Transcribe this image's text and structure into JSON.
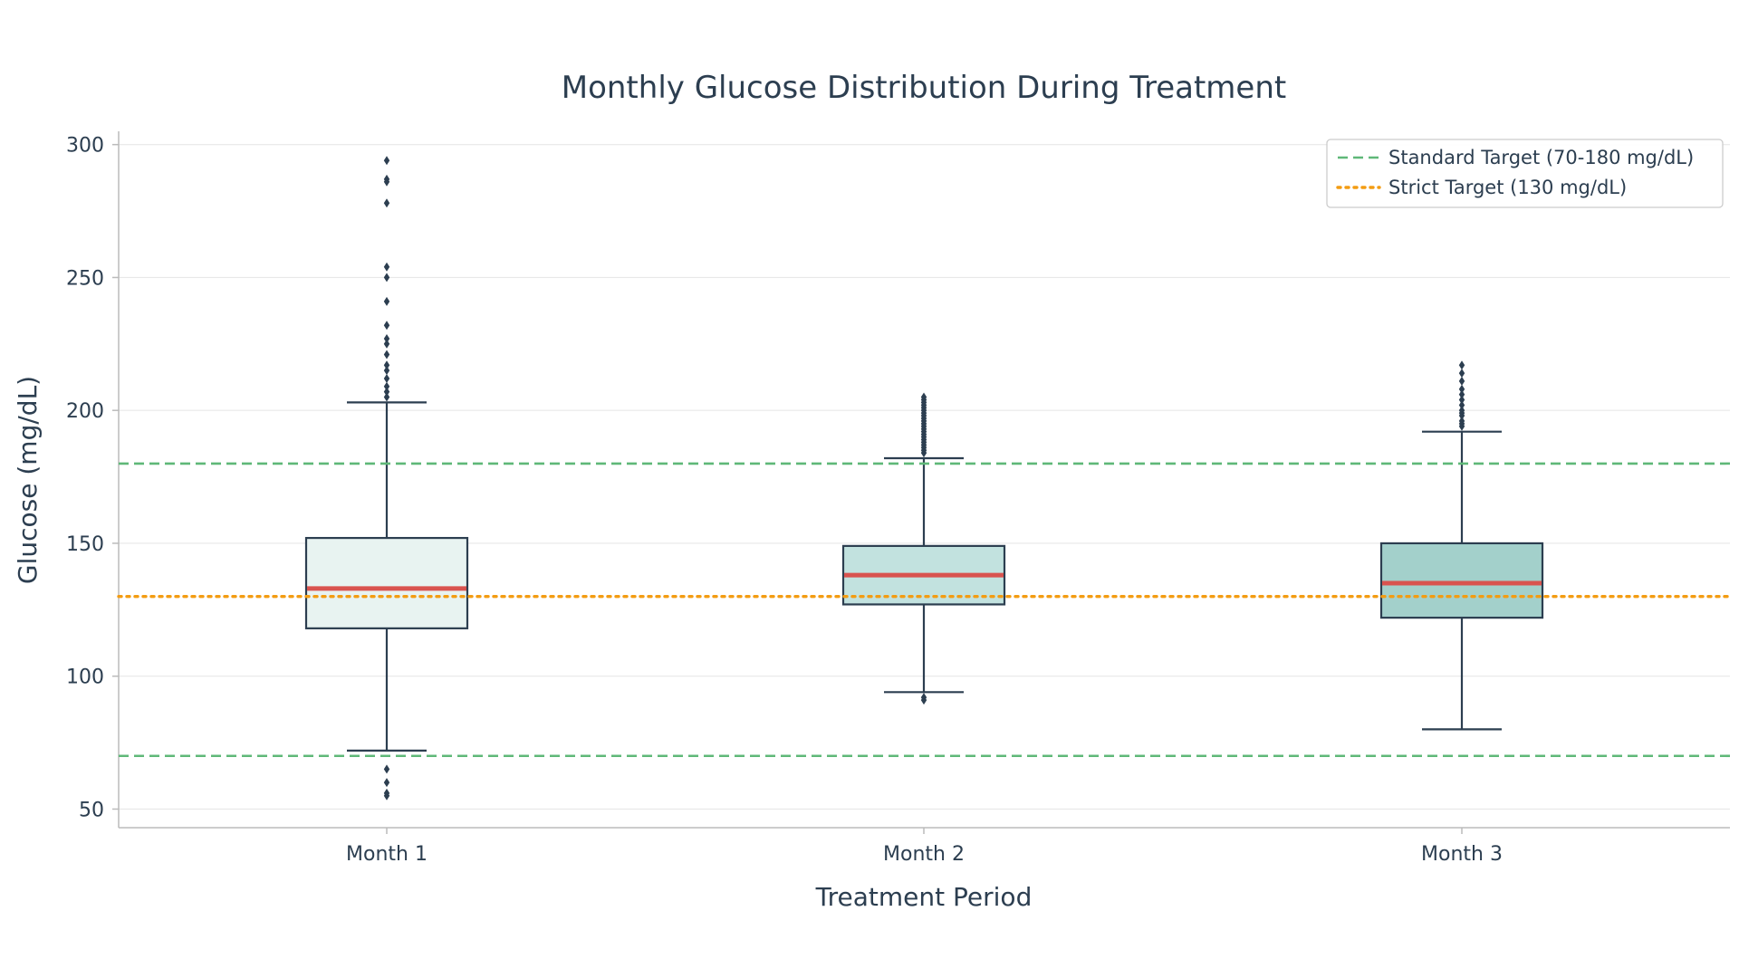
{
  "chart_data": {
    "type": "box",
    "title": "Monthly Glucose Distribution During Treatment",
    "xlabel": "Treatment Period",
    "ylabel": "Glucose (mg/dL)",
    "ylim": [
      43,
      305
    ],
    "yticks": [
      50,
      100,
      150,
      200,
      250,
      300
    ],
    "grid": "horizontal",
    "legend_position": "top-right",
    "categories": [
      "Month 1",
      "Month 2",
      "Month 3"
    ],
    "boxes": [
      {
        "category": "Month 1",
        "whisker_low": 72,
        "q1": 118,
        "median": 133,
        "q3": 152,
        "whisker_high": 203,
        "outliers": [
          294,
          287,
          286,
          278,
          254,
          250,
          241,
          232,
          227,
          225,
          221,
          217,
          215,
          212,
          209,
          207,
          205,
          65,
          60,
          56,
          55
        ],
        "fill": "#e8f3f1"
      },
      {
        "category": "Month 2",
        "whisker_low": 94,
        "q1": 127,
        "median": 138,
        "q3": 149,
        "whisker_high": 182,
        "outliers": [
          205,
          204,
          203,
          202,
          201,
          200,
          199,
          198,
          197,
          196,
          195,
          194,
          193,
          192,
          191,
          190,
          189,
          188,
          187,
          186,
          185,
          184,
          92,
          91
        ],
        "fill": "#c2e2df"
      },
      {
        "category": "Month 3",
        "whisker_low": 80,
        "q1": 122,
        "median": 135,
        "q3": 150,
        "whisker_high": 192,
        "outliers": [
          217,
          214,
          211,
          208,
          206,
          204,
          202,
          200,
          199,
          198,
          196,
          195,
          194
        ],
        "fill": "#a3d0cb"
      }
    ],
    "reference_lines": [
      {
        "name": "Standard Target (70-180 mg/dL)",
        "values": [
          180,
          70
        ],
        "color": "#5fb878",
        "style": "dashed"
      },
      {
        "name": "Strict Target (130 mg/dL)",
        "values": [
          130
        ],
        "color": "#f39c12",
        "style": "dotted"
      }
    ],
    "colors": {
      "median": "#d9534f",
      "box_edge": "#2c3e50",
      "whisker": "#2c3e50",
      "outlier": "#2c3e50",
      "grid": "#e8e8e8",
      "axis": "#bbbbbb"
    }
  }
}
